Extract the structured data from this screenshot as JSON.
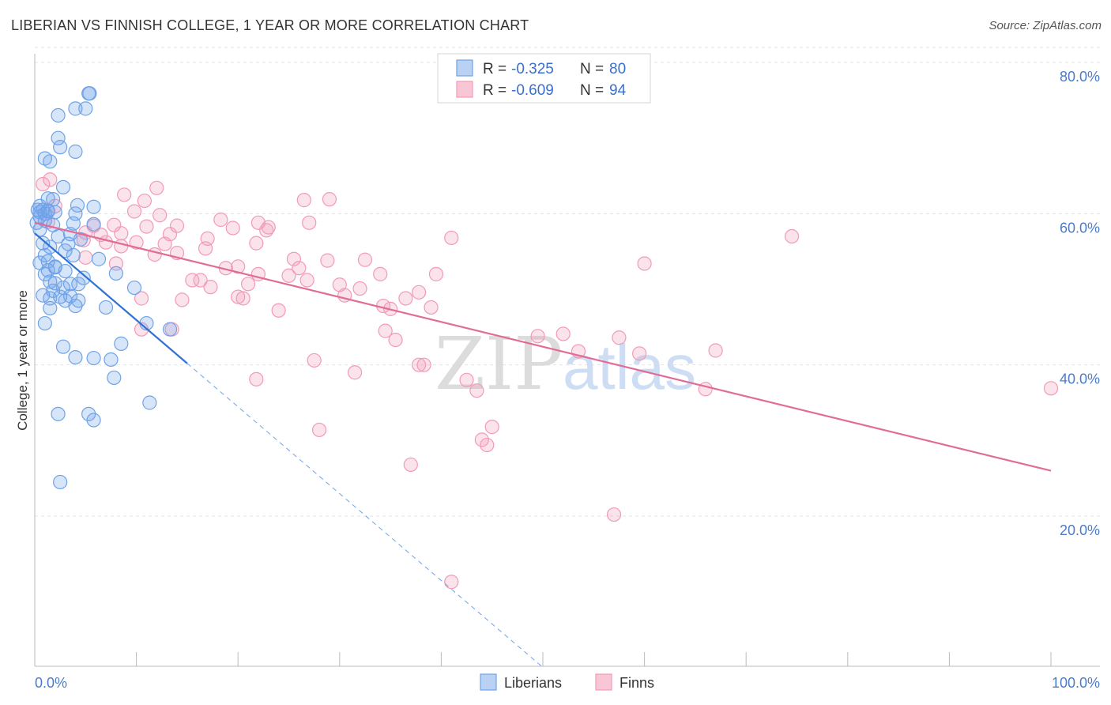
{
  "title": "LIBERIAN VS FINNISH COLLEGE, 1 YEAR OR MORE CORRELATION CHART",
  "source": "Source: ZipAtlas.com",
  "watermark": {
    "zip": "ZIP",
    "atlas": "atlas"
  },
  "colors": {
    "liberians": "#6fa3e8",
    "liberians_line": "#2f72d4",
    "finns": "#f29ab7",
    "finns_line": "#e06c97",
    "tick_text": "#4a7cc9",
    "grid": "#e3e3e3"
  },
  "legend": {
    "rows": [
      {
        "r_label": "R =",
        "r_value": "-0.325",
        "n_label": "N =",
        "n_value": "80"
      },
      {
        "r_label": "R =",
        "r_value": "-0.609",
        "n_label": "N =",
        "n_value": "94"
      }
    ]
  },
  "bottom_legend": [
    "Liberians",
    "Finns"
  ],
  "chart_data": {
    "type": "scatter",
    "title": "LIBERIAN VS FINNISH COLLEGE, 1 YEAR OR MORE CORRELATION CHART",
    "xlabel": "",
    "ylabel": "College, 1 year or more",
    "xlim": [
      0,
      100
    ],
    "ylim": [
      0,
      82
    ],
    "x_tick_labels": [
      "0.0%",
      "100.0%"
    ],
    "y_ticks": [
      20,
      40,
      60,
      80
    ],
    "y_tick_labels": [
      "20.0%",
      "40.0%",
      "60.0%",
      "80.0%"
    ],
    "grid": true,
    "legend_position": "top-center",
    "series": [
      {
        "name": "Liberians",
        "r": -0.325,
        "n": 80,
        "trend": {
          "x0": 0,
          "y0": 57.4,
          "x1": 15,
          "y1": 40.2,
          "dashed_x1": 50,
          "dashed_y1": 0
        },
        "points": [
          [
            5.3,
            75.9
          ],
          [
            5.4,
            75.9
          ],
          [
            4.0,
            73.9
          ],
          [
            5.0,
            73.9
          ],
          [
            2.3,
            73.0
          ],
          [
            2.3,
            70.0
          ],
          [
            2.5,
            68.8
          ],
          [
            4.0,
            68.2
          ],
          [
            1.0,
            67.3
          ],
          [
            1.5,
            66.9
          ],
          [
            2.8,
            63.5
          ],
          [
            1.3,
            62.0
          ],
          [
            1.8,
            61.9
          ],
          [
            4.2,
            61.1
          ],
          [
            5.8,
            60.9
          ],
          [
            0.3,
            60.5
          ],
          [
            1.3,
            60.4
          ],
          [
            0.5,
            60.2
          ],
          [
            2.0,
            60.2
          ],
          [
            1.0,
            60.0
          ],
          [
            4.0,
            60.0
          ],
          [
            0.5,
            59.6
          ],
          [
            1.0,
            59.1
          ],
          [
            0.2,
            58.8
          ],
          [
            3.8,
            58.7
          ],
          [
            5.8,
            58.6
          ],
          [
            0.5,
            57.9
          ],
          [
            3.5,
            57.3
          ],
          [
            2.3,
            57.0
          ],
          [
            4.5,
            56.6
          ],
          [
            0.8,
            56.1
          ],
          [
            1.5,
            55.6
          ],
          [
            3.0,
            55.1
          ],
          [
            1.0,
            54.5
          ],
          [
            3.8,
            54.5
          ],
          [
            6.3,
            54.0
          ],
          [
            1.3,
            53.7
          ],
          [
            0.5,
            53.5
          ],
          [
            2.0,
            52.9
          ],
          [
            1.3,
            52.5
          ],
          [
            3.0,
            52.4
          ],
          [
            1.0,
            52.0
          ],
          [
            4.8,
            51.5
          ],
          [
            8.0,
            52.1
          ],
          [
            1.5,
            51.0
          ],
          [
            2.0,
            50.8
          ],
          [
            3.5,
            50.7
          ],
          [
            4.3,
            50.7
          ],
          [
            2.8,
            50.2
          ],
          [
            1.8,
            49.8
          ],
          [
            9.8,
            50.2
          ],
          [
            0.8,
            49.2
          ],
          [
            2.5,
            49.0
          ],
          [
            3.5,
            49.1
          ],
          [
            1.5,
            48.8
          ],
          [
            3.0,
            48.5
          ],
          [
            4.3,
            48.5
          ],
          [
            4.0,
            47.8
          ],
          [
            1.5,
            47.5
          ],
          [
            7.0,
            47.6
          ],
          [
            1.0,
            45.5
          ],
          [
            11.0,
            45.5
          ],
          [
            13.3,
            44.7
          ],
          [
            8.5,
            42.8
          ],
          [
            2.8,
            42.4
          ],
          [
            4.0,
            41.0
          ],
          [
            5.8,
            40.9
          ],
          [
            7.5,
            40.7
          ],
          [
            7.8,
            38.3
          ],
          [
            11.3,
            35.0
          ],
          [
            2.3,
            33.5
          ],
          [
            5.3,
            33.5
          ],
          [
            5.8,
            32.7
          ],
          [
            2.5,
            24.5
          ],
          [
            0.8,
            60.5
          ],
          [
            1.3,
            60.3
          ],
          [
            0.5,
            61.0
          ],
          [
            1.8,
            58.5
          ],
          [
            3.3,
            56.0
          ],
          [
            2.0,
            53.0
          ]
        ]
      },
      {
        "name": "Finns",
        "r": -0.609,
        "n": 94,
        "trend": {
          "x0": 0,
          "y0": 58.8,
          "x1": 100,
          "y1": 26.0
        },
        "points": [
          [
            0.8,
            63.9
          ],
          [
            1.5,
            64.5
          ],
          [
            8.8,
            62.5
          ],
          [
            10.8,
            61.7
          ],
          [
            12.0,
            63.4
          ],
          [
            26.5,
            61.8
          ],
          [
            29.0,
            61.9
          ],
          [
            2.0,
            61.0
          ],
          [
            9.8,
            60.3
          ],
          [
            12.3,
            59.8
          ],
          [
            18.3,
            59.2
          ],
          [
            1.3,
            58.9
          ],
          [
            22.0,
            58.8
          ],
          [
            23.0,
            58.2
          ],
          [
            27.0,
            58.8
          ],
          [
            5.8,
            58.4
          ],
          [
            7.8,
            58.5
          ],
          [
            11.0,
            58.3
          ],
          [
            14.0,
            58.4
          ],
          [
            19.5,
            58.1
          ],
          [
            5.0,
            57.5
          ],
          [
            8.5,
            57.4
          ],
          [
            13.3,
            57.3
          ],
          [
            6.5,
            57.2
          ],
          [
            22.8,
            57.8
          ],
          [
            17.0,
            56.7
          ],
          [
            4.8,
            56.5
          ],
          [
            7.0,
            56.2
          ],
          [
            10.0,
            56.2
          ],
          [
            12.8,
            56.0
          ],
          [
            16.8,
            55.4
          ],
          [
            21.8,
            56.1
          ],
          [
            41.0,
            56.8
          ],
          [
            74.5,
            57.0
          ],
          [
            8.5,
            55.7
          ],
          [
            11.8,
            54.6
          ],
          [
            14.0,
            54.8
          ],
          [
            5.0,
            54.2
          ],
          [
            25.5,
            54.0
          ],
          [
            28.8,
            53.8
          ],
          [
            32.5,
            53.9
          ],
          [
            60.0,
            53.4
          ],
          [
            8.0,
            53.4
          ],
          [
            18.8,
            52.8
          ],
          [
            20.0,
            53.0
          ],
          [
            26.0,
            52.8
          ],
          [
            22.0,
            52.0
          ],
          [
            25.0,
            51.8
          ],
          [
            34.0,
            52.0
          ],
          [
            39.5,
            52.0
          ],
          [
            15.5,
            51.2
          ],
          [
            16.3,
            51.2
          ],
          [
            26.8,
            51.2
          ],
          [
            21.0,
            50.7
          ],
          [
            30.0,
            50.6
          ],
          [
            17.3,
            50.3
          ],
          [
            32.0,
            50.1
          ],
          [
            30.5,
            49.2
          ],
          [
            36.5,
            48.8
          ],
          [
            37.8,
            49.6
          ],
          [
            20.0,
            49.0
          ],
          [
            10.5,
            48.8
          ],
          [
            14.5,
            48.6
          ],
          [
            20.5,
            48.8
          ],
          [
            34.3,
            47.8
          ],
          [
            39.0,
            47.6
          ],
          [
            24.0,
            47.2
          ],
          [
            35.0,
            47.4
          ],
          [
            10.5,
            44.7
          ],
          [
            34.5,
            44.5
          ],
          [
            13.5,
            44.7
          ],
          [
            35.5,
            43.3
          ],
          [
            49.5,
            43.8
          ],
          [
            52.0,
            44.1
          ],
          [
            57.5,
            43.6
          ],
          [
            53.5,
            41.8
          ],
          [
            59.5,
            41.5
          ],
          [
            67.0,
            41.9
          ],
          [
            27.5,
            40.6
          ],
          [
            37.8,
            40.0
          ],
          [
            38.3,
            40.0
          ],
          [
            31.5,
            39.0
          ],
          [
            21.8,
            38.1
          ],
          [
            42.5,
            38.0
          ],
          [
            43.5,
            36.6
          ],
          [
            66.0,
            36.8
          ],
          [
            100.0,
            36.9
          ],
          [
            28.0,
            31.4
          ],
          [
            45.0,
            31.8
          ],
          [
            44.0,
            30.1
          ],
          [
            44.5,
            29.4
          ],
          [
            37.0,
            26.8
          ],
          [
            57.0,
            20.2
          ],
          [
            41.0,
            11.3
          ]
        ]
      }
    ]
  }
}
